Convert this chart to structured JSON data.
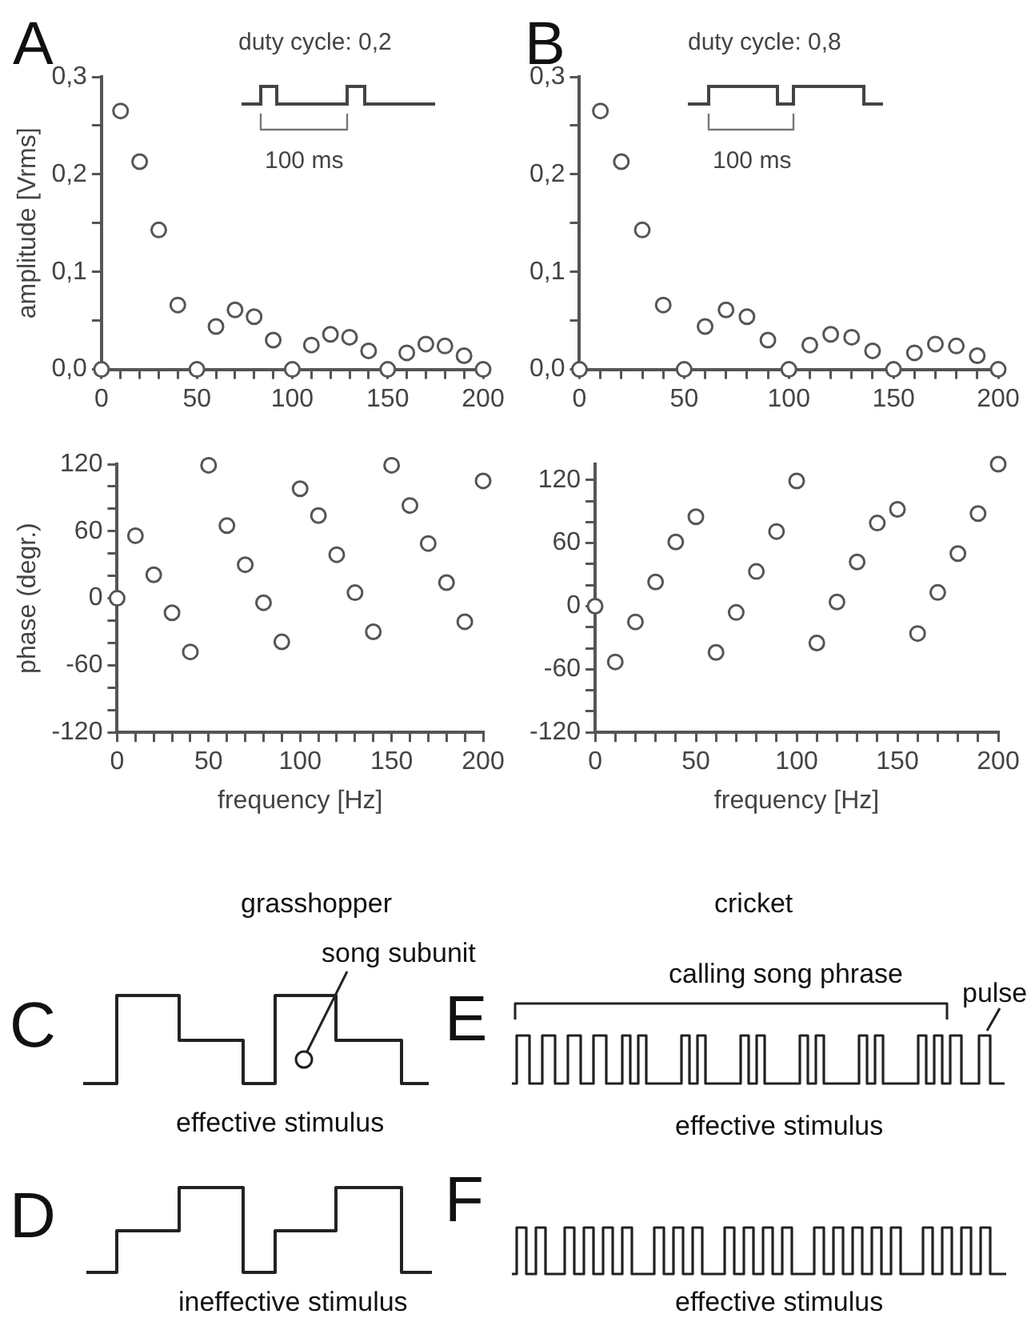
{
  "chart_data": [
    {
      "type": "scatter",
      "title": "A",
      "ylabel": "amplitude [Vrms]",
      "annotations": [
        "duty cycle: 0,2",
        "100 ms"
      ],
      "marker": "circle",
      "grid": false,
      "x": [
        0,
        10,
        20,
        30,
        40,
        50,
        60,
        70,
        80,
        90,
        100,
        110,
        120,
        130,
        140,
        150,
        160,
        170,
        180,
        190,
        200
      ],
      "series": [
        {
          "color": "#555555",
          "values": [
            0,
            0.265,
            0.213,
            0.143,
            0.066,
            0,
            0.044,
            0.061,
            0.054,
            0.03,
            0,
            0.025,
            0.036,
            0.033,
            0.019,
            0,
            0.017,
            0.026,
            0.024,
            0.014,
            0
          ]
        }
      ],
      "xlim": [
        0,
        200
      ],
      "ylim": [
        0,
        0.3
      ],
      "xticks": [
        0,
        {
          "value": 10,
          "label": null
        },
        {
          "value": 20,
          "label": null
        },
        {
          "value": 30,
          "label": null
        },
        {
          "value": 40,
          "label": null
        },
        50,
        {
          "value": 60,
          "label": null
        },
        {
          "value": 70,
          "label": null
        },
        {
          "value": 80,
          "label": null
        },
        {
          "value": 90,
          "label": null
        },
        100,
        {
          "value": 110,
          "label": null
        },
        {
          "value": 120,
          "label": null
        },
        {
          "value": 130,
          "label": null
        },
        {
          "value": 140,
          "label": null
        },
        150,
        {
          "value": 160,
          "label": null
        },
        {
          "value": 170,
          "label": null
        },
        {
          "value": 180,
          "label": null
        },
        {
          "value": 190,
          "label": null
        },
        200
      ],
      "yticks": [
        {
          "value": 0,
          "label": "0,0"
        },
        {
          "value": 0.05,
          "label": null
        },
        {
          "value": 0.1,
          "label": "0,1"
        },
        {
          "value": 0.15,
          "label": null
        },
        {
          "value": 0.2,
          "label": "0,2"
        },
        {
          "value": 0.25,
          "label": null
        },
        {
          "value": 0.3,
          "label": "0,3"
        }
      ]
    },
    {
      "type": "scatter",
      "title": "B",
      "annotations": [
        "duty cycle: 0,8",
        "100 ms"
      ],
      "marker": "circle",
      "grid": false,
      "x": [
        0,
        10,
        20,
        30,
        40,
        50,
        60,
        70,
        80,
        90,
        100,
        110,
        120,
        130,
        140,
        150,
        160,
        170,
        180,
        190,
        200
      ],
      "series": [
        {
          "color": "#555555",
          "values": [
            0,
            0.265,
            0.213,
            0.143,
            0.066,
            0,
            0.044,
            0.061,
            0.054,
            0.03,
            0,
            0.025,
            0.036,
            0.033,
            0.019,
            0,
            0.017,
            0.026,
            0.024,
            0.014,
            0
          ]
        }
      ],
      "xlim": [
        0,
        200
      ],
      "ylim": [
        0,
        0.3
      ],
      "xticks": [
        0,
        {
          "value": 10,
          "label": null
        },
        {
          "value": 20,
          "label": null
        },
        {
          "value": 30,
          "label": null
        },
        {
          "value": 40,
          "label": null
        },
        50,
        {
          "value": 60,
          "label": null
        },
        {
          "value": 70,
          "label": null
        },
        {
          "value": 80,
          "label": null
        },
        {
          "value": 90,
          "label": null
        },
        100,
        {
          "value": 110,
          "label": null
        },
        {
          "value": 120,
          "label": null
        },
        {
          "value": 130,
          "label": null
        },
        {
          "value": 140,
          "label": null
        },
        150,
        {
          "value": 160,
          "label": null
        },
        {
          "value": 170,
          "label": null
        },
        {
          "value": 180,
          "label": null
        },
        {
          "value": 190,
          "label": null
        },
        200
      ],
      "yticks": [
        {
          "value": 0,
          "label": "0,0"
        },
        {
          "value": 0.05,
          "label": null
        },
        {
          "value": 0.1,
          "label": "0,1"
        },
        {
          "value": 0.15,
          "label": null
        },
        {
          "value": 0.2,
          "label": "0,2"
        },
        {
          "value": 0.25,
          "label": null
        },
        {
          "value": 0.3,
          "label": "0,3"
        }
      ]
    },
    {
      "type": "scatter",
      "xlabel": "frequency [Hz]",
      "ylabel": "phase (degr.)",
      "marker": "circle",
      "grid": false,
      "x": [
        0,
        10,
        20,
        30,
        40,
        50,
        60,
        70,
        80,
        90,
        100,
        110,
        120,
        130,
        140,
        150,
        160,
        170,
        180,
        190,
        200
      ],
      "series": [
        {
          "color": "#555555",
          "values": [
            0,
            56,
            21,
            -13,
            -48,
            119,
            65,
            30,
            -4,
            -39,
            98,
            74,
            39,
            5,
            -30,
            119,
            83,
            49,
            14,
            -21,
            105
          ]
        }
      ],
      "xlim": [
        0,
        200
      ],
      "ylim": [
        -120,
        120
      ],
      "xticks": [
        0,
        {
          "value": 10,
          "label": null
        },
        {
          "value": 20,
          "label": null
        },
        {
          "value": 30,
          "label": null
        },
        {
          "value": 40,
          "label": null
        },
        50,
        {
          "value": 60,
          "label": null
        },
        {
          "value": 70,
          "label": null
        },
        {
          "value": 80,
          "label": null
        },
        {
          "value": 90,
          "label": null
        },
        100,
        {
          "value": 110,
          "label": null
        },
        {
          "value": 120,
          "label": null
        },
        {
          "value": 130,
          "label": null
        },
        {
          "value": 140,
          "label": null
        },
        150,
        {
          "value": 160,
          "label": null
        },
        {
          "value": 170,
          "label": null
        },
        {
          "value": 180,
          "label": null
        },
        {
          "value": 190,
          "label": null
        },
        200
      ],
      "yticks": [
        -120,
        {
          "value": -100,
          "label": null
        },
        {
          "value": -80,
          "label": null
        },
        -60,
        {
          "value": -40,
          "label": null
        },
        {
          "value": -20,
          "label": null
        },
        0,
        {
          "value": 20,
          "label": null
        },
        {
          "value": 40,
          "label": null
        },
        60,
        {
          "value": 80,
          "label": null
        },
        {
          "value": 100,
          "label": null
        },
        120
      ]
    },
    {
      "type": "scatter",
      "xlabel": "frequency [Hz]",
      "marker": "circle",
      "grid": false,
      "x": [
        0,
        10,
        20,
        30,
        40,
        50,
        60,
        70,
        80,
        90,
        100,
        110,
        120,
        130,
        140,
        150,
        160,
        170,
        180,
        190,
        200
      ],
      "series": [
        {
          "color": "#555555",
          "values": [
            0,
            -53,
            -15,
            23,
            61,
            85,
            -44,
            -6,
            33,
            71,
            119,
            -35,
            4,
            42,
            79,
            92,
            -26,
            13,
            50,
            88,
            135
          ]
        }
      ],
      "xlim": [
        0,
        200
      ],
      "ylim": [
        -120,
        135
      ],
      "xticks": [
        0,
        {
          "value": 10,
          "label": null
        },
        {
          "value": 20,
          "label": null
        },
        {
          "value": 30,
          "label": null
        },
        {
          "value": 40,
          "label": null
        },
        50,
        {
          "value": 60,
          "label": null
        },
        {
          "value": 70,
          "label": null
        },
        {
          "value": 80,
          "label": null
        },
        {
          "value": 90,
          "label": null
        },
        100,
        {
          "value": 110,
          "label": null
        },
        {
          "value": 120,
          "label": null
        },
        {
          "value": 130,
          "label": null
        },
        {
          "value": 140,
          "label": null
        },
        150,
        {
          "value": 160,
          "label": null
        },
        {
          "value": 170,
          "label": null
        },
        {
          "value": 180,
          "label": null
        },
        {
          "value": 190,
          "label": null
        },
        200
      ],
      "yticks": [
        -120,
        {
          "value": -100,
          "label": null
        },
        {
          "value": -80,
          "label": null
        },
        -60,
        {
          "value": -40,
          "label": null
        },
        {
          "value": -20,
          "label": null
        },
        0,
        {
          "value": 20,
          "label": null
        },
        {
          "value": 40,
          "label": null
        },
        60,
        {
          "value": 80,
          "label": null
        },
        {
          "value": 100,
          "label": null
        },
        120
      ]
    },
    {
      "type": "other",
      "annotations": [
        "C",
        "D",
        "E",
        "F",
        "grasshopper",
        "cricket",
        "song subunit",
        "calling song phrase",
        "pulse",
        "effective stimulus",
        "ineffective stimulus",
        "effective stimulus",
        "effective stimulus"
      ]
    }
  ]
}
